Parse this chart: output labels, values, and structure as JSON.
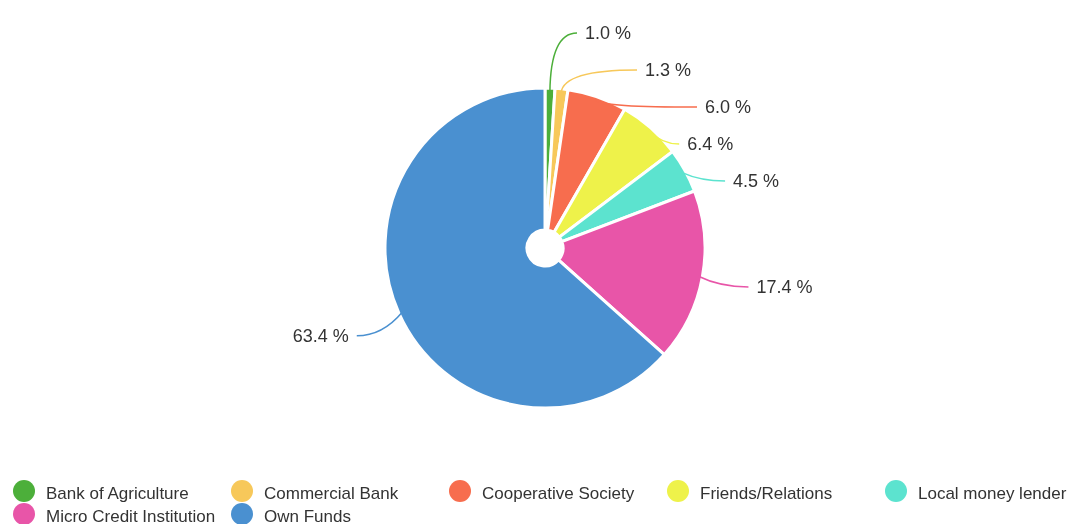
{
  "chart_data": {
    "type": "pie",
    "categories": [
      "Bank of Agriculture",
      "Commercial Bank",
      "Cooperative Society",
      "Friends/Relations",
      "Local money lender",
      "Micro Credit Institution",
      "Own Funds"
    ],
    "values": [
      1.0,
      1.3,
      6.0,
      6.4,
      4.5,
      17.4,
      63.4
    ],
    "colors": [
      "#4caf3a",
      "#f7c85a",
      "#f76d4e",
      "#eef24a",
      "#5ce3cf",
      "#e855a8",
      "#4a90d0"
    ],
    "value_labels": [
      "1.0 %",
      "1.3 %",
      "6.0 %",
      "6.4 %",
      "4.5 %",
      "17.4 %",
      "63.4 %"
    ],
    "legend": "bottom"
  }
}
